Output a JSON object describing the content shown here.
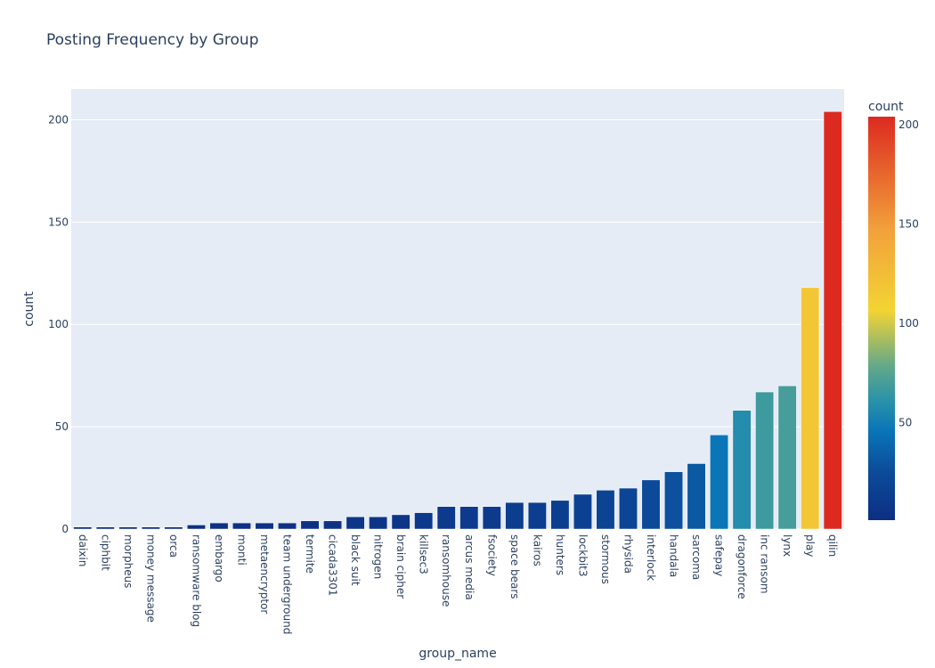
{
  "chart_data": {
    "type": "bar",
    "title": "Posting Frequency by Group",
    "xlabel": "group_name",
    "ylabel": "count",
    "categories": [
      "daixin",
      "ciphbit",
      "morpheus",
      "money message",
      "orca",
      "ransomware blog",
      "embargo",
      "monti",
      "metaencryptor",
      "team underground",
      "termite",
      "cicada3301",
      "black suit",
      "nitrogen",
      "brain cipher",
      "killsec3",
      "ransomhouse",
      "arcus media",
      "fsociety",
      "space bears",
      "kairos",
      "hunters",
      "lockbit3",
      "stormous",
      "rhysida",
      "interlock",
      "handala",
      "sarcoma",
      "safepay",
      "dragonforce",
      "inc ransom",
      "lynx",
      "play",
      "qilin"
    ],
    "values": [
      1,
      1,
      1,
      1,
      1,
      2,
      3,
      3,
      3,
      3,
      4,
      4,
      6,
      6,
      7,
      8,
      11,
      11,
      11,
      13,
      13,
      14,
      17,
      19,
      20,
      24,
      28,
      32,
      46,
      58,
      67,
      70,
      118,
      204
    ],
    "ylim": [
      0,
      215
    ],
    "yticks": [
      0,
      50,
      100,
      150,
      200
    ],
    "grid": true,
    "colorbar": {
      "title": "count",
      "range": [
        1,
        204
      ],
      "ticks": [
        50,
        100,
        150,
        200
      ],
      "colorscale": [
        "#0d2f82",
        "#0c4b9a",
        "#0974b7",
        "#2c93a8",
        "#61a88a",
        "#f3d434",
        "#f2a13b",
        "#dc2a20"
      ]
    },
    "colors": {
      "plot_bg": "#e5ecf6",
      "grid": "#ffffff",
      "text": "#2a3f5f"
    }
  }
}
